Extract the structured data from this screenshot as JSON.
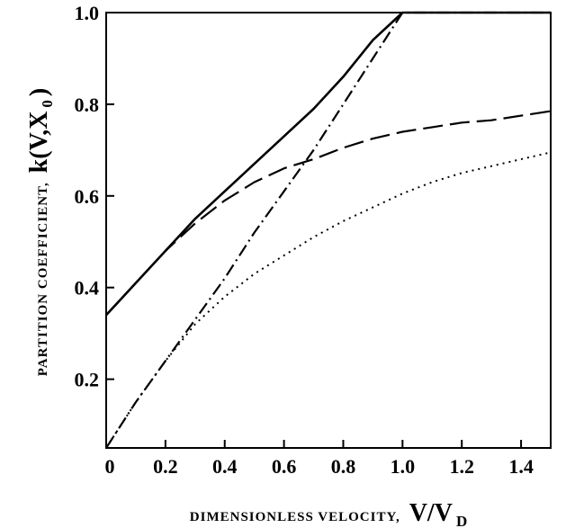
{
  "chart_data": {
    "type": "line",
    "xlabel_caps": "DIMENSIONLESS VELOCITY,",
    "xlabel_main": "V/V",
    "xlabel_sub": "D",
    "ylabel_caps": "PARTITION COEFFICIENT,",
    "ylabel_main_a": "k(V,X",
    "ylabel_sub": "0",
    "ylabel_main_b": ")",
    "xlim": [
      0,
      1.5
    ],
    "ylim": [
      0.05,
      1.0
    ],
    "x_ticks": [
      {
        "value": 0,
        "label": "0"
      },
      {
        "value": 0.2,
        "label": "0.2"
      },
      {
        "value": 0.4,
        "label": "0.4"
      },
      {
        "value": 0.6,
        "label": "0.6"
      },
      {
        "value": 0.8,
        "label": "0.8"
      },
      {
        "value": 1.0,
        "label": "1.0"
      },
      {
        "value": 1.2,
        "label": "1.2"
      },
      {
        "value": 1.4,
        "label": "1.4"
      }
    ],
    "y_ticks": [
      {
        "value": 0.2,
        "label": "0.2"
      },
      {
        "value": 0.4,
        "label": "0.4"
      },
      {
        "value": 0.6,
        "label": "0.6"
      },
      {
        "value": 0.8,
        "label": "0.8"
      },
      {
        "value": 1.0,
        "label": "1.0"
      }
    ],
    "grid": false,
    "legend": "none",
    "series": [
      {
        "style": "solid",
        "x": [
          0,
          0.1,
          0.2,
          0.3,
          0.4,
          0.5,
          0.6,
          0.7,
          0.8,
          0.9,
          1.0,
          1.2,
          1.5
        ],
        "y": [
          0.34,
          0.41,
          0.48,
          0.55,
          0.61,
          0.67,
          0.73,
          0.79,
          0.86,
          0.94,
          1.0,
          1.0,
          1.0
        ]
      },
      {
        "style": "dashed",
        "x": [
          0,
          0.1,
          0.2,
          0.3,
          0.4,
          0.5,
          0.6,
          0.7,
          0.8,
          0.9,
          1.0,
          1.1,
          1.2,
          1.3,
          1.4,
          1.5
        ],
        "y": [
          0.34,
          0.41,
          0.48,
          0.54,
          0.59,
          0.63,
          0.66,
          0.68,
          0.705,
          0.725,
          0.74,
          0.75,
          0.76,
          0.765,
          0.775,
          0.785
        ]
      },
      {
        "style": "dotted",
        "x": [
          0,
          0.1,
          0.2,
          0.3,
          0.4,
          0.5,
          0.6,
          0.7,
          0.8,
          0.9,
          1.0,
          1.1,
          1.2,
          1.3,
          1.4,
          1.5
        ],
        "y": [
          0.05,
          0.15,
          0.24,
          0.32,
          0.38,
          0.43,
          0.47,
          0.51,
          0.545,
          0.575,
          0.605,
          0.63,
          0.65,
          0.665,
          0.68,
          0.695
        ]
      },
      {
        "style": "dashdot",
        "x": [
          0,
          0.1,
          0.2,
          0.3,
          0.4,
          0.5,
          0.6,
          0.7,
          0.8,
          0.9,
          1.0,
          1.5
        ],
        "y": [
          0.05,
          0.15,
          0.24,
          0.33,
          0.42,
          0.52,
          0.61,
          0.7,
          0.8,
          0.9,
          1.0,
          1.0
        ]
      }
    ]
  }
}
